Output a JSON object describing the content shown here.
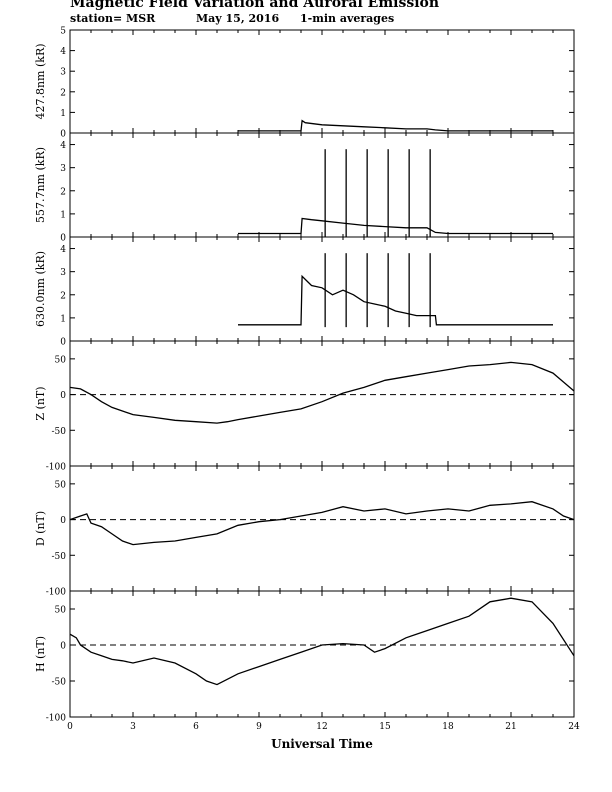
{
  "header": {
    "title": "Magnetic Field Variation and Auroral Emission",
    "station": "station= MSR",
    "date": "May 15, 2016",
    "averaging": "1-min averages"
  },
  "chart_data": [
    {
      "type": "line",
      "ylabel": "427.8nm (kR)",
      "ylim": [
        0,
        5
      ],
      "yticks": [
        0,
        1,
        2,
        3,
        4,
        5
      ],
      "xlim": [
        0,
        24
      ],
      "grid": false,
      "series": [
        {
          "color": "#000000",
          "x": [
            8,
            9,
            10,
            11,
            11.05,
            11.2,
            12,
            13,
            14,
            15,
            16,
            17,
            17.4,
            18,
            19,
            20,
            21,
            22,
            23
          ],
          "y": [
            0.1,
            0.1,
            0.1,
            0.1,
            0.6,
            0.5,
            0.4,
            0.35,
            0.3,
            0.25,
            0.2,
            0.2,
            0.15,
            0.1,
            0.1,
            0.1,
            0.1,
            0.1,
            0.1
          ]
        }
      ]
    },
    {
      "type": "line",
      "ylabel": "557.7nm (kR)",
      "ylim": [
        0,
        4.5
      ],
      "yticks": [
        0,
        1,
        2,
        3,
        4
      ],
      "xlim": [
        0,
        24
      ],
      "grid": false,
      "series": [
        {
          "color": "#000000",
          "x": [
            8,
            9,
            10,
            11,
            11.05,
            11.5,
            12,
            13,
            14,
            15,
            16,
            17,
            17.4,
            18,
            19,
            20,
            21,
            22,
            23
          ],
          "y": [
            0.15,
            0.15,
            0.15,
            0.15,
            0.8,
            0.75,
            0.7,
            0.6,
            0.5,
            0.45,
            0.4,
            0.4,
            0.2,
            0.15,
            0.15,
            0.15,
            0.15,
            0.15,
            0.15
          ]
        }
      ],
      "spikes": {
        "x": [
          12.15,
          13.15,
          14.15,
          15.15,
          16.15,
          17.15
        ],
        "to": 3.8
      }
    },
    {
      "type": "line",
      "ylabel": "630.0nm (kR)",
      "ylim": [
        0,
        4.5
      ],
      "yticks": [
        0,
        1,
        2,
        3,
        4
      ],
      "xlim": [
        0,
        24
      ],
      "grid": false,
      "series": [
        {
          "color": "#000000",
          "x": [
            8,
            9,
            10,
            11,
            11.05,
            11.5,
            12,
            12.5,
            13,
            13.5,
            14,
            14.5,
            15,
            15.5,
            16,
            16.5,
            17,
            17.4,
            17.45,
            18,
            19,
            20,
            21,
            22,
            23
          ],
          "y": [
            0.7,
            0.7,
            0.7,
            0.7,
            2.8,
            2.4,
            2.3,
            2.0,
            2.2,
            2.0,
            1.7,
            1.6,
            1.5,
            1.3,
            1.2,
            1.1,
            1.1,
            1.1,
            0.7,
            0.7,
            0.7,
            0.7,
            0.7,
            0.7,
            0.7
          ]
        }
      ],
      "spikes": {
        "x": [
          12.15,
          13.15,
          14.15,
          15.15,
          16.15,
          17.15
        ],
        "from": 0.6,
        "to": 3.8
      }
    },
    {
      "type": "line",
      "ylabel": "Z (nT)",
      "ylim": [
        -100,
        75
      ],
      "yticks": [
        -100,
        -50,
        0,
        50
      ],
      "xlim": [
        0,
        24
      ],
      "grid": false,
      "zero_line": "dashed",
      "series": [
        {
          "color": "#000000",
          "x": [
            0,
            0.5,
            1,
            1.5,
            2,
            3,
            4,
            5,
            6,
            7,
            7.5,
            8,
            9,
            10,
            11,
            12,
            13,
            14,
            15,
            16,
            17,
            18,
            19,
            20,
            21,
            22,
            23,
            24
          ],
          "y": [
            10,
            8,
            0,
            -10,
            -18,
            -28,
            -32,
            -36,
            -38,
            -40,
            -38,
            -35,
            -30,
            -25,
            -20,
            -10,
            2,
            10,
            20,
            25,
            30,
            35,
            40,
            42,
            45,
            42,
            30,
            5
          ]
        }
      ]
    },
    {
      "type": "line",
      "ylabel": "D (nT)",
      "ylim": [
        -100,
        75
      ],
      "yticks": [
        -100,
        -50,
        0,
        50
      ],
      "xlim": [
        0,
        24
      ],
      "grid": false,
      "zero_line": "dashed",
      "series": [
        {
          "color": "#000000",
          "x": [
            0,
            0.5,
            0.8,
            1,
            1.5,
            2,
            2.5,
            3,
            4,
            5,
            6,
            7,
            8,
            9,
            10,
            11,
            12,
            13,
            14,
            15,
            16,
            17,
            18,
            19,
            20,
            21,
            22,
            23,
            23.5,
            24
          ],
          "y": [
            0,
            5,
            8,
            -5,
            -10,
            -20,
            -30,
            -35,
            -32,
            -30,
            -25,
            -20,
            -8,
            -3,
            0,
            5,
            10,
            18,
            12,
            15,
            8,
            12,
            15,
            12,
            20,
            22,
            25,
            15,
            5,
            0
          ]
        }
      ]
    },
    {
      "type": "line",
      "ylabel": "H (nT)",
      "ylim": [
        -100,
        75
      ],
      "yticks": [
        -100,
        -50,
        0,
        50
      ],
      "xlim": [
        0,
        24
      ],
      "grid": false,
      "zero_line": "dashed",
      "xlabel": "Universal Time",
      "xticks": [
        0,
        3,
        6,
        9,
        12,
        15,
        18,
        21,
        24
      ],
      "series": [
        {
          "color": "#000000",
          "x": [
            0,
            0.3,
            0.5,
            1,
            1.5,
            2,
            2.5,
            3,
            4,
            5,
            6,
            6.5,
            7,
            8,
            9,
            10,
            11,
            12,
            13,
            14,
            14.5,
            15,
            16,
            17,
            18,
            19,
            20,
            21,
            22,
            23,
            24
          ],
          "y": [
            15,
            10,
            0,
            -10,
            -15,
            -20,
            -22,
            -25,
            -18,
            -25,
            -40,
            -50,
            -55,
            -40,
            -30,
            -20,
            -10,
            0,
            2,
            0,
            -10,
            -5,
            10,
            20,
            30,
            40,
            60,
            65,
            60,
            30,
            -15
          ]
        }
      ]
    }
  ]
}
